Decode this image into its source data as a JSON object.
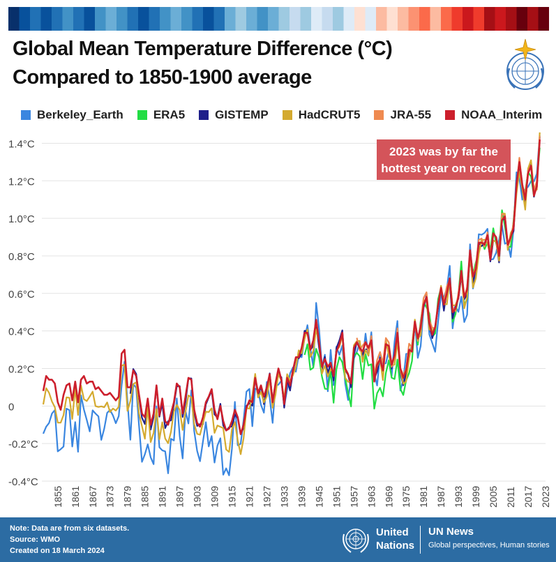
{
  "header": {
    "stripe_colors": [
      "#08306b",
      "#08519c",
      "#2171b5",
      "#08519c",
      "#2171b5",
      "#4292c6",
      "#2171b5",
      "#08519c",
      "#4292c6",
      "#6baed6",
      "#4292c6",
      "#2171b5",
      "#08519c",
      "#2171b5",
      "#4292c6",
      "#6baed6",
      "#4292c6",
      "#2171b5",
      "#08519c",
      "#2171b5",
      "#6baed6",
      "#9ecae1",
      "#6baed6",
      "#4292c6",
      "#6baed6",
      "#9ecae1",
      "#c6dbef",
      "#9ecae1",
      "#deebf7",
      "#c6dbef",
      "#9ecae1",
      "#deebf7",
      "#fee0d2",
      "#deebf7",
      "#fcbba1",
      "#fee0d2",
      "#fcbba1",
      "#fc9272",
      "#fb6a4a",
      "#fcbba1",
      "#fb6a4a",
      "#ef3b2c",
      "#cb181d",
      "#ef3b2c",
      "#a50f15",
      "#cb181d",
      "#a50f15",
      "#67000d",
      "#a50f15",
      "#67000d"
    ],
    "title_line1": "Global Mean Temperature Difference (°C)",
    "title_line2": "Compared to 1850-1900 average"
  },
  "footer": {
    "note_line1": "Note:  Data are from six datasets.",
    "note_line2": "Source: WMO",
    "note_line3": "Created on 18 March 2024",
    "un_name": "United Nations",
    "news_title": "UN News",
    "news_subtitle": "Global perspectives, Human stories"
  },
  "chart_data": {
    "type": "line",
    "title": "Global Mean Temperature Difference (°C) Compared to 1850-1900 average",
    "ylim": [
      -0.4,
      1.45
    ],
    "yticks": [
      -0.4,
      -0.2,
      0,
      0.2,
      0.4,
      0.6,
      0.8,
      1.0,
      1.2,
      1.4
    ],
    "ytick_labels": [
      "-0.4°C",
      "-0.2°C",
      "0",
      "0.2°C",
      "0.4°C",
      "0.6°C",
      "0.8°C",
      "1.0°C",
      "1.2°C",
      "1.4°C"
    ],
    "xlim": [
      1850,
      2023
    ],
    "xticks": [
      1855,
      1861,
      1867,
      1873,
      1879,
      1885,
      1891,
      1897,
      1903,
      1909,
      1915,
      1921,
      1927,
      1933,
      1939,
      1945,
      1951,
      1957,
      1963,
      1969,
      1975,
      1981,
      1987,
      1993,
      1999,
      2005,
      2011,
      2017,
      2023
    ],
    "grid": "horizontal",
    "legend_position": "top",
    "annotation": {
      "line1": "2023 was by far the",
      "line2": "hottest year on record",
      "color": "#d4545a"
    },
    "reference": {
      "name": "NOAA_Interim",
      "start": 1850,
      "values": [
        0.08,
        0.16,
        0.14,
        0.14,
        0.12,
        0.02,
        -0.02,
        0.06,
        0.11,
        0.12,
        0.03,
        0.13,
        0.02,
        0.14,
        0.16,
        0.12,
        0.13,
        0.13,
        0.09,
        0.1,
        0.08,
        0.06,
        0.06,
        0.07,
        0.05,
        0.03,
        0.05,
        0.28,
        0.3,
        0.1,
        0.1,
        0.19,
        0.16,
        0.06,
        -0.04,
        -0.06,
        0.04,
        -0.1,
        -0.04,
        0.11,
        -0.05,
        0.04,
        -0.08,
        -0.1,
        -0.04,
        0.02,
        0.12,
        0.1,
        -0.04,
        0.05,
        0.15,
        0.14,
        -0.02,
        -0.09,
        -0.11,
        -0.06,
        0.02,
        0.05,
        0.09,
        -0.02,
        -0.07,
        0.0,
        -0.08,
        -0.13,
        -0.12,
        -0.08,
        -0.02,
        -0.06,
        -0.15,
        -0.1,
        -0.01,
        0.03,
        0.02,
        0.15,
        0.07,
        0.11,
        0.05,
        0.1,
        0.17,
        0.02,
        0.12,
        0.2,
        0.14,
        0.01,
        0.15,
        0.11,
        0.19,
        0.26,
        0.26,
        0.31,
        0.39,
        0.39,
        0.3,
        0.35,
        0.46,
        0.34,
        0.21,
        0.25,
        0.21,
        0.23,
        0.16,
        0.29,
        0.33,
        0.39,
        0.2,
        0.17,
        0.12,
        0.31,
        0.34,
        0.31,
        0.29,
        0.34,
        0.31,
        0.35,
        0.13,
        0.22,
        0.25,
        0.19,
        0.33,
        0.32,
        0.22,
        0.27,
        0.39,
        0.2,
        0.15,
        0.19,
        0.3,
        0.29,
        0.45,
        0.36,
        0.42,
        0.54,
        0.58,
        0.44,
        0.38,
        0.42,
        0.54,
        0.63,
        0.54,
        0.6,
        0.68,
        0.5,
        0.52,
        0.58,
        0.72,
        0.58,
        0.62,
        0.83,
        0.69,
        0.73,
        0.87,
        0.87,
        0.86,
        0.91,
        0.78,
        0.92,
        0.9,
        0.8,
        0.99,
        1.01,
        0.86,
        0.9,
        0.95,
        1.18,
        1.3,
        1.18,
        1.1,
        1.24,
        1.28,
        1.12,
        1.17,
        1.42
      ]
    },
    "series": [
      {
        "name": "Berkeley_Earth",
        "color": "#3a86e0",
        "start": 1850,
        "end": 2023,
        "offset": -0.03,
        "noise": 0.12,
        "early_shift": -0.14,
        "early_until": 1915
      },
      {
        "name": "ERA5",
        "color": "#22dd44",
        "start": 1940,
        "end": 2023,
        "offset": 0.0,
        "noise": 0.06,
        "early_shift": -0.1,
        "early_until": 1978
      },
      {
        "name": "GISTEMP",
        "color": "#1f1f8a",
        "start": 1880,
        "end": 2023,
        "offset": -0.01,
        "noise": 0.03,
        "early_shift": 0.0,
        "early_until": 1880
      },
      {
        "name": "HadCRUT5",
        "color": "#d4aa2f",
        "start": 1850,
        "end": 2023,
        "offset": -0.01,
        "noise": 0.05,
        "early_shift": -0.07,
        "early_until": 1920
      },
      {
        "name": "JRA-55",
        "color": "#ef8a50",
        "start": 1958,
        "end": 2023,
        "offset": 0.01,
        "noise": 0.03,
        "early_shift": 0.0,
        "early_until": 1958
      },
      {
        "name": "NOAA_Interim",
        "color": "#cc1f2c",
        "start": 1850,
        "end": 2023,
        "offset": 0.0,
        "noise": 0.0,
        "early_shift": 0.0,
        "early_until": 1850
      }
    ]
  }
}
